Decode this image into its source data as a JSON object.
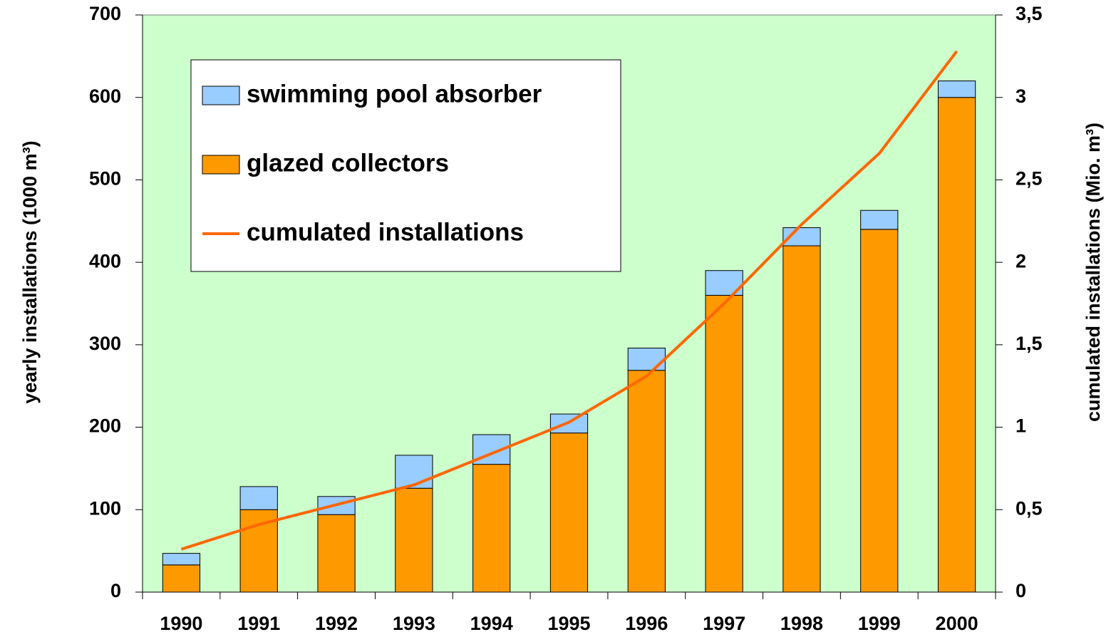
{
  "chart_data": {
    "type": "bar",
    "categories": [
      "1990",
      "1991",
      "1992",
      "1993",
      "1994",
      "1995",
      "1996",
      "1997",
      "1998",
      "1999",
      "2000"
    ],
    "stacked": true,
    "series": [
      {
        "name": "glazed collectors",
        "color": "#ff9900",
        "values": [
          33,
          100,
          94,
          126,
          155,
          193,
          269,
          360,
          420,
          440,
          600
        ]
      },
      {
        "name": "swimming pool absorber",
        "color": "#99ccff",
        "values": [
          14,
          28,
          22,
          40,
          36,
          23,
          27,
          30,
          22,
          23,
          20
        ]
      },
      {
        "name": "cumulated installations",
        "type": "line",
        "axis": "y2",
        "color": "#ff6600",
        "values": [
          0.26,
          0.41,
          0.53,
          0.65,
          0.84,
          1.03,
          1.31,
          1.75,
          2.23,
          2.66,
          3.28
        ]
      }
    ],
    "legend_order": [
      1,
      0,
      2
    ],
    "ylabel": "yearly installations  (1000 m³)",
    "y2label": "cumulated installations (Mio. m³)",
    "ylim": [
      0,
      700
    ],
    "yticks": [
      0,
      100,
      200,
      300,
      400,
      500,
      600,
      700
    ],
    "y2lim": [
      0,
      3.5
    ],
    "y2ticks": [
      0,
      {
        "value": 0.5,
        "label": "0,5"
      },
      1,
      {
        "value": 1.5,
        "label": "1,5"
      },
      2,
      {
        "value": 2.5,
        "label": "2,5"
      },
      3,
      {
        "value": 3.5,
        "label": "3,5"
      }
    ],
    "background": "#ccffcc",
    "legend": "upper left"
  }
}
